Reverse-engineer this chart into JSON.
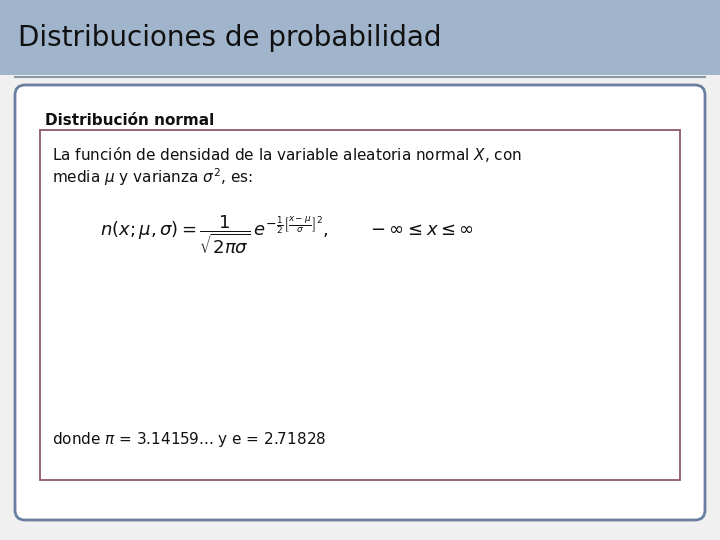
{
  "title": "Distribuciones de probabilidad",
  "title_bg_color": "#a0b4cc",
  "title_text_color": "#111111",
  "title_fontsize": 20,
  "page_bg_color": "#f0f0f0",
  "outer_box_bg": "#ffffff",
  "outer_box_border": "#6a7fa0",
  "inner_box_bg": "#ffffff",
  "inner_box_border": "#8b5a6a",
  "subtitle": "Distribución normal",
  "subtitle_fontsize": 11,
  "text_line1": "La función de densidad de la variable aleatoria normal $X$, con",
  "text_line2": "media $\\mu$ y varianza $\\sigma^2$, es:",
  "footnote": "donde $\\pi$ = 3.14159... y e = 2.71828",
  "text_fontsize": 11,
  "formula_fontsize": 13,
  "footnote_fontsize": 11
}
